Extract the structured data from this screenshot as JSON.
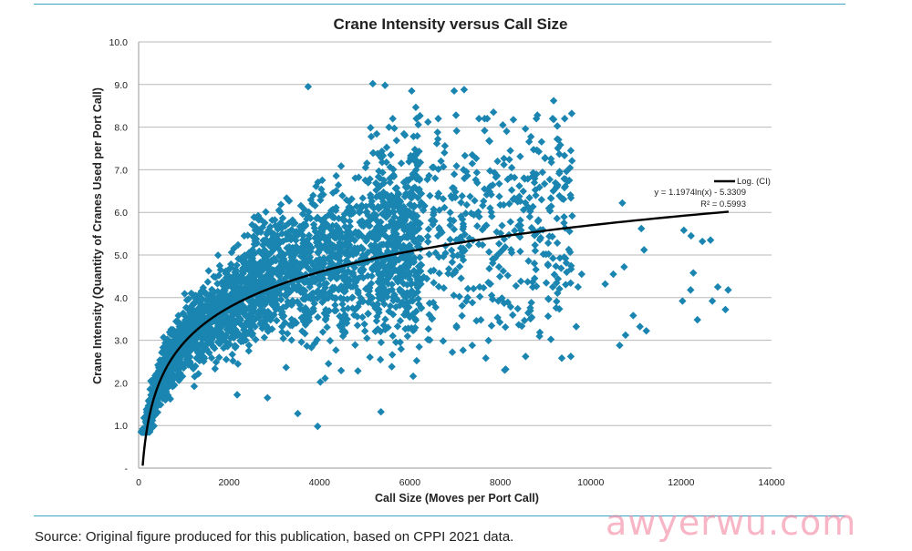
{
  "chart_data": {
    "type": "scatter",
    "title": "Crane Intensity versus Call Size",
    "xlabel": "Call Size (Moves per Port Call)",
    "ylabel": "Crane Intensity (Quantity of Cranes Used per Port Call)",
    "xlim": [
      0,
      14000
    ],
    "ylim": [
      0,
      10
    ],
    "x_ticks": [
      "0",
      "2000",
      "4000",
      "6000",
      "8000",
      "10000",
      "12000",
      "14000"
    ],
    "y_ticks": [
      "-",
      "1.0",
      "2.0",
      "3.0",
      "4.0",
      "5.0",
      "6.0",
      "7.0",
      "8.0",
      "9.0",
      "10.0"
    ],
    "grid": "horizontal",
    "series": [
      {
        "marker": "diamond",
        "color": "#1a85b0",
        "points": [
          [
            3750,
            8.95
          ],
          [
            5180,
            9.02
          ],
          [
            5450,
            8.98
          ],
          [
            6040,
            8.85
          ],
          [
            6980,
            8.85
          ],
          [
            7200,
            8.88
          ],
          [
            6400,
            8.12
          ],
          [
            7020,
            8.28
          ],
          [
            7850,
            8.35
          ],
          [
            8820,
            8.28
          ],
          [
            9180,
            8.62
          ],
          [
            9580,
            8.32
          ],
          [
            9260,
            7.72
          ],
          [
            9180,
            8.18
          ],
          [
            9560,
            7.45
          ],
          [
            6620,
            7.72
          ],
          [
            7380,
            7.35
          ],
          [
            8080,
            7.12
          ],
          [
            9420,
            6.58
          ],
          [
            8420,
            6.62
          ],
          [
            10700,
            6.22
          ],
          [
            11120,
            5.62
          ],
          [
            11180,
            5.12
          ],
          [
            12060,
            5.58
          ],
          [
            12220,
            5.45
          ],
          [
            12470,
            5.32
          ],
          [
            12650,
            5.35
          ],
          [
            9060,
            5.28
          ],
          [
            10740,
            4.72
          ],
          [
            10500,
            4.55
          ],
          [
            10320,
            4.32
          ],
          [
            9800,
            4.55
          ],
          [
            9720,
            4.25
          ],
          [
            12270,
            4.58
          ],
          [
            12810,
            4.25
          ],
          [
            13040,
            4.18
          ],
          [
            12210,
            4.18
          ],
          [
            12030,
            3.92
          ],
          [
            12690,
            3.92
          ],
          [
            12980,
            3.72
          ],
          [
            12360,
            3.48
          ],
          [
            10940,
            3.58
          ],
          [
            11090,
            3.32
          ],
          [
            11230,
            3.22
          ],
          [
            10640,
            2.88
          ],
          [
            10770,
            3.12
          ],
          [
            9120,
            3.02
          ],
          [
            9360,
            2.58
          ],
          [
            9560,
            2.62
          ],
          [
            9680,
            3.32
          ],
          [
            8560,
            2.62
          ],
          [
            8120,
            2.32
          ],
          [
            7380,
            2.88
          ],
          [
            6940,
            2.72
          ],
          [
            7680,
            2.58
          ],
          [
            5360,
            1.32
          ],
          [
            3960,
            0.98
          ],
          [
            3520,
            1.28
          ],
          [
            2850,
            1.65
          ],
          [
            2180,
            1.72
          ],
          [
            1230,
            1.92
          ],
          [
            4020,
            2.02
          ],
          [
            4200,
            2.45
          ],
          [
            4850,
            2.28
          ],
          [
            5600,
            2.38
          ],
          [
            6150,
            2.52
          ],
          [
            300,
            0.95
          ],
          [
            180,
            1.05
          ],
          [
            120,
            1.18
          ],
          [
            220,
            1.28
          ],
          [
            90,
            0.92
          ]
        ]
      },
      {
        "name": "Log. (CI)",
        "type": "line",
        "equation": "y = 1.1974ln(x) - 5.3309",
        "r2": "R² = 0.5993",
        "a": 1.1974,
        "b": -5.3309,
        "x_range": [
          90,
          13050
        ],
        "color": "#000000"
      }
    ]
  },
  "source_text": "Source: Original figure produced for this publication, based on CPPI 2021 data.",
  "watermark": "awyerwu.com"
}
